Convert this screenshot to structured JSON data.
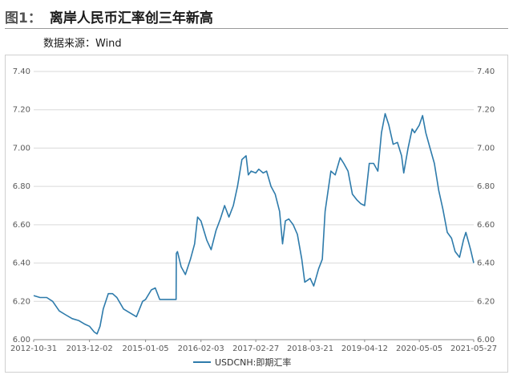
{
  "header": {
    "figure_label": "图1：",
    "title": "离岸人民币汇率创三年新高",
    "source": "数据来源：Wind"
  },
  "chart_data": {
    "type": "line",
    "title": "离岸人民币汇率创三年新高",
    "y_ticks": [
      "6.00",
      "6.20",
      "6.40",
      "6.60",
      "6.80",
      "7.00",
      "7.20",
      "7.40"
    ],
    "ylim": [
      6.0,
      7.4
    ],
    "x_ticks": [
      "2012-10-31",
      "2013-12-02",
      "2015-01-05",
      "2016-02-03",
      "2017-02-27",
      "2018-03-21",
      "2019-04-12",
      "2020-05-05",
      "2021-05-27"
    ],
    "xlim": [
      "2012-10-31",
      "2021-05-27"
    ],
    "grid": "horizontal",
    "dual_y_axis": true,
    "legend_position": "bottom",
    "color": "#2e7bab",
    "series": [
      {
        "name": "USDCNH:即期汇率",
        "points": [
          [
            "2012-10-31",
            6.23
          ],
          [
            "2012-12-15",
            6.22
          ],
          [
            "2013-02-01",
            6.22
          ],
          [
            "2013-03-15",
            6.2
          ],
          [
            "2013-05-01",
            6.15
          ],
          [
            "2013-06-15",
            6.13
          ],
          [
            "2013-08-01",
            6.11
          ],
          [
            "2013-09-15",
            6.1
          ],
          [
            "2013-11-01",
            6.08
          ],
          [
            "2013-12-02",
            6.07
          ],
          [
            "2014-01-05",
            6.04
          ],
          [
            "2014-01-25",
            6.03
          ],
          [
            "2014-02-15",
            6.07
          ],
          [
            "2014-03-10",
            6.16
          ],
          [
            "2014-04-15",
            6.24
          ],
          [
            "2014-05-15",
            6.24
          ],
          [
            "2014-06-15",
            6.22
          ],
          [
            "2014-08-01",
            6.16
          ],
          [
            "2014-09-15",
            6.14
          ],
          [
            "2014-11-01",
            6.12
          ],
          [
            "2014-12-15",
            6.2
          ],
          [
            "2015-01-05",
            6.21
          ],
          [
            "2015-02-15",
            6.26
          ],
          [
            "2015-03-15",
            6.27
          ],
          [
            "2015-04-15",
            6.21
          ],
          [
            "2015-06-15",
            6.21
          ],
          [
            "2015-08-10",
            6.21
          ],
          [
            "2015-08-12",
            6.45
          ],
          [
            "2015-08-20",
            6.46
          ],
          [
            "2015-09-15",
            6.38
          ],
          [
            "2015-10-15",
            6.34
          ],
          [
            "2015-11-20",
            6.42
          ],
          [
            "2015-12-20",
            6.5
          ],
          [
            "2016-01-10",
            6.64
          ],
          [
            "2016-02-03",
            6.62
          ],
          [
            "2016-03-15",
            6.52
          ],
          [
            "2016-04-15",
            6.47
          ],
          [
            "2016-05-20",
            6.57
          ],
          [
            "2016-06-20",
            6.63
          ],
          [
            "2016-07-20",
            6.7
          ],
          [
            "2016-08-20",
            6.64
          ],
          [
            "2016-09-20",
            6.7
          ],
          [
            "2016-10-20",
            6.8
          ],
          [
            "2016-11-20",
            6.94
          ],
          [
            "2016-12-20",
            6.96
          ],
          [
            "2017-01-05",
            6.86
          ],
          [
            "2017-01-25",
            6.88
          ],
          [
            "2017-02-27",
            6.87
          ],
          [
            "2017-03-20",
            6.89
          ],
          [
            "2017-04-20",
            6.87
          ],
          [
            "2017-05-15",
            6.88
          ],
          [
            "2017-06-15",
            6.8
          ],
          [
            "2017-07-15",
            6.76
          ],
          [
            "2017-08-15",
            6.67
          ],
          [
            "2017-09-05",
            6.5
          ],
          [
            "2017-09-25",
            6.62
          ],
          [
            "2017-10-20",
            6.63
          ],
          [
            "2017-11-20",
            6.6
          ],
          [
            "2017-12-20",
            6.55
          ],
          [
            "2018-01-20",
            6.42
          ],
          [
            "2018-02-10",
            6.3
          ],
          [
            "2018-03-21",
            6.32
          ],
          [
            "2018-04-15",
            6.28
          ],
          [
            "2018-05-20",
            6.37
          ],
          [
            "2018-06-15",
            6.42
          ],
          [
            "2018-07-05",
            6.67
          ],
          [
            "2018-08-15",
            6.88
          ],
          [
            "2018-09-15",
            6.86
          ],
          [
            "2018-10-20",
            6.95
          ],
          [
            "2018-11-15",
            6.92
          ],
          [
            "2018-12-15",
            6.88
          ],
          [
            "2019-01-15",
            6.76
          ],
          [
            "2019-02-15",
            6.73
          ],
          [
            "2019-03-15",
            6.71
          ],
          [
            "2019-04-12",
            6.7
          ],
          [
            "2019-05-15",
            6.92
          ],
          [
            "2019-06-15",
            6.92
          ],
          [
            "2019-07-15",
            6.88
          ],
          [
            "2019-08-10",
            7.08
          ],
          [
            "2019-09-05",
            7.18
          ],
          [
            "2019-10-01",
            7.12
          ],
          [
            "2019-11-01",
            7.02
          ],
          [
            "2019-12-01",
            7.03
          ],
          [
            "2019-12-31",
            6.96
          ],
          [
            "2020-01-15",
            6.87
          ],
          [
            "2020-02-15",
            7.0
          ],
          [
            "2020-03-15",
            7.1
          ],
          [
            "2020-04-01",
            7.08
          ],
          [
            "2020-05-05",
            7.12
          ],
          [
            "2020-05-28",
            7.17
          ],
          [
            "2020-06-20",
            7.08
          ],
          [
            "2020-07-20",
            7.0
          ],
          [
            "2020-08-20",
            6.92
          ],
          [
            "2020-09-20",
            6.78
          ],
          [
            "2020-10-20",
            6.68
          ],
          [
            "2020-11-20",
            6.56
          ],
          [
            "2020-12-20",
            6.53
          ],
          [
            "2021-01-15",
            6.46
          ],
          [
            "2021-02-15",
            6.43
          ],
          [
            "2021-03-15",
            6.52
          ],
          [
            "2021-04-01",
            6.56
          ],
          [
            "2021-04-20",
            6.51
          ],
          [
            "2021-05-05",
            6.47
          ],
          [
            "2021-05-27",
            6.4
          ]
        ]
      }
    ]
  }
}
